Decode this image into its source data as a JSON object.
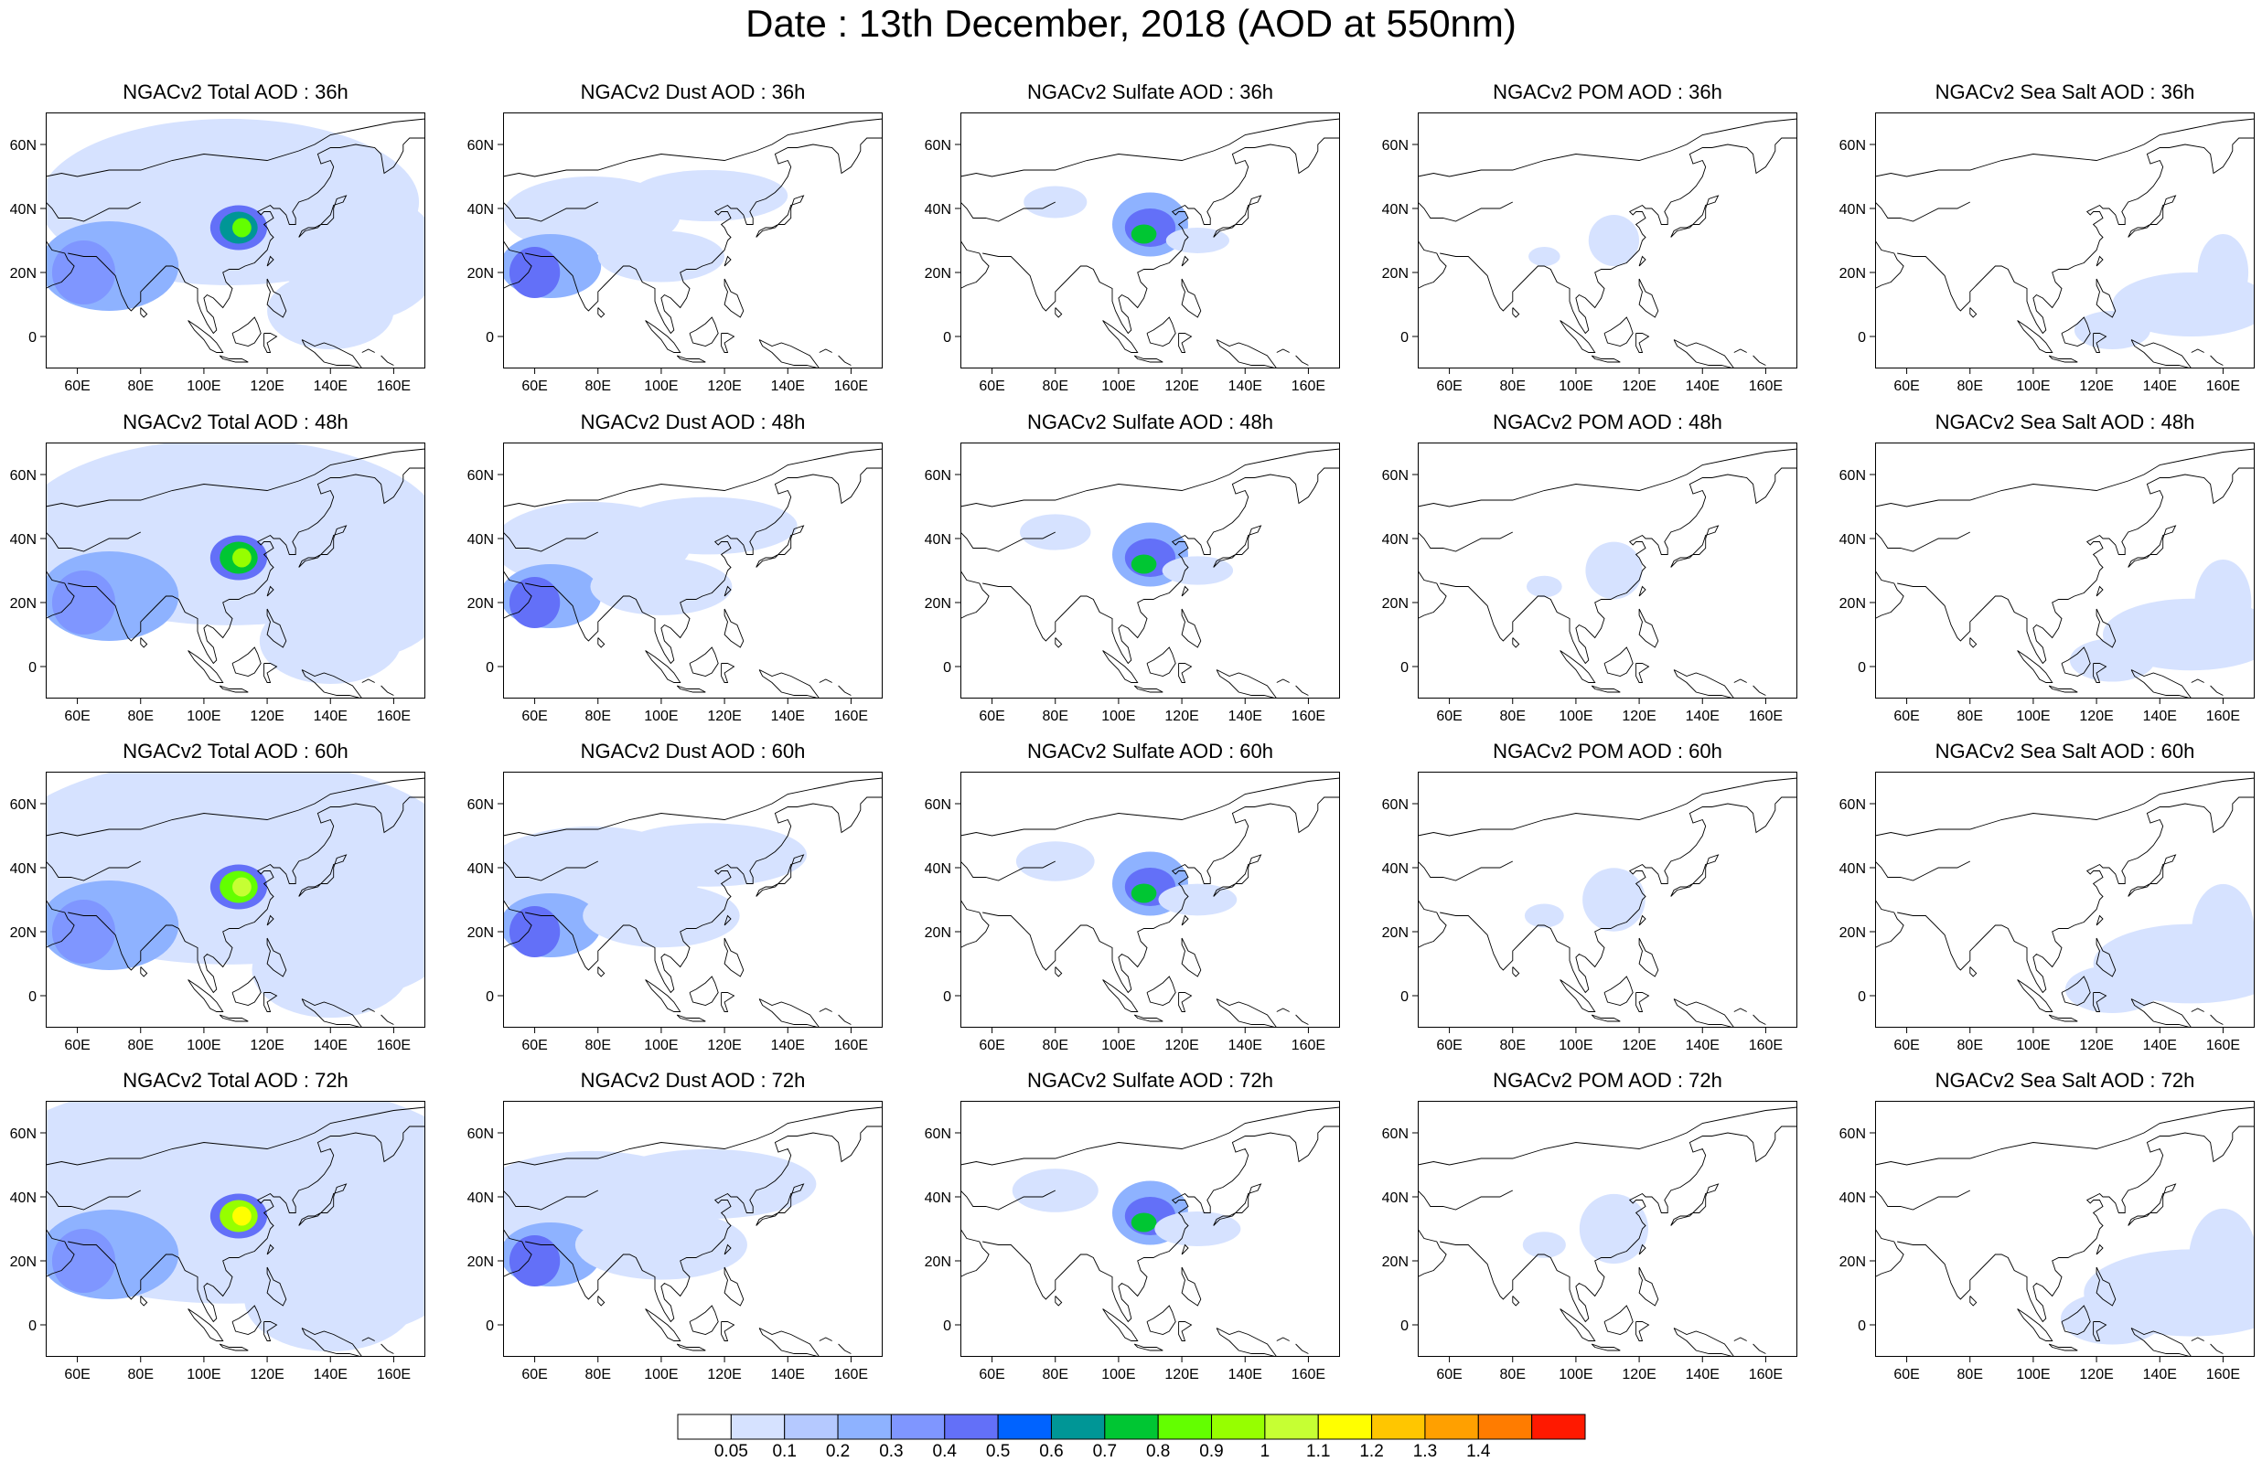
{
  "title": "Date : 13th December, 2018 (AOD at 550nm)",
  "panels": [
    {
      "title": "NGACv2 Total AOD : 36h",
      "species": "total",
      "hour": "36h"
    },
    {
      "title": "NGACv2 Dust AOD : 36h",
      "species": "dust",
      "hour": "36h"
    },
    {
      "title": "NGACv2 Sulfate AOD : 36h",
      "species": "sulfate",
      "hour": "36h"
    },
    {
      "title": "NGACv2 POM AOD : 36h",
      "species": "pom",
      "hour": "36h"
    },
    {
      "title": "NGACv2 Sea Salt AOD : 36h",
      "species": "seasalt",
      "hour": "36h"
    },
    {
      "title": "NGACv2 Total AOD : 48h",
      "species": "total",
      "hour": "48h"
    },
    {
      "title": "NGACv2 Dust AOD : 48h",
      "species": "dust",
      "hour": "48h"
    },
    {
      "title": "NGACv2 Sulfate AOD : 48h",
      "species": "sulfate",
      "hour": "48h"
    },
    {
      "title": "NGACv2 POM AOD : 48h",
      "species": "pom",
      "hour": "48h"
    },
    {
      "title": "NGACv2 Sea Salt AOD : 48h",
      "species": "seasalt",
      "hour": "48h"
    },
    {
      "title": "NGACv2 Total AOD : 60h",
      "species": "total",
      "hour": "60h"
    },
    {
      "title": "NGACv2 Dust AOD : 60h",
      "species": "dust",
      "hour": "60h"
    },
    {
      "title": "NGACv2 Sulfate AOD : 60h",
      "species": "sulfate",
      "hour": "60h"
    },
    {
      "title": "NGACv2 POM AOD : 60h",
      "species": "pom",
      "hour": "60h"
    },
    {
      "title": "NGACv2 Sea Salt AOD : 60h",
      "species": "seasalt",
      "hour": "60h"
    },
    {
      "title": "NGACv2 Total AOD : 72h",
      "species": "total",
      "hour": "72h"
    },
    {
      "title": "NGACv2 Dust AOD : 72h",
      "species": "dust",
      "hour": "72h"
    },
    {
      "title": "NGACv2 Sulfate AOD : 72h",
      "species": "sulfate",
      "hour": "72h"
    },
    {
      "title": "NGACv2 POM AOD : 72h",
      "species": "pom",
      "hour": "72h"
    },
    {
      "title": "NGACv2 Sea Salt  AOD : 72h",
      "species": "seasalt",
      "hour": "72h"
    }
  ],
  "map": {
    "lon_range": [
      50,
      170
    ],
    "lat_range": [
      -10,
      70
    ],
    "lon_ticks": [
      60,
      80,
      100,
      120,
      140,
      160
    ],
    "lon_tick_labels": [
      "60E",
      "80E",
      "100E",
      "120E",
      "140E",
      "160E"
    ],
    "lat_ticks": [
      0,
      20,
      40,
      60
    ],
    "lat_tick_labels": [
      "0",
      "20N",
      "40N",
      "60N"
    ]
  },
  "colorbar": {
    "levels": [
      "0.05",
      "0.1",
      "0.2",
      "0.3",
      "0.4",
      "0.5",
      "0.6",
      "0.7",
      "0.8",
      "0.9",
      "1",
      "1.1",
      "1.2",
      "1.3",
      "1.4"
    ],
    "colors": [
      "#ffffff",
      "#d6e2ff",
      "#b5c9ff",
      "#8eb2ff",
      "#7f96ff",
      "#6370f8",
      "#0063ff",
      "#009696",
      "#00c633",
      "#63ff00",
      "#96ff00",
      "#c6ff33",
      "#ffff00",
      "#ffc600",
      "#ffa000",
      "#ff7c00",
      "#ff1900"
    ]
  }
}
